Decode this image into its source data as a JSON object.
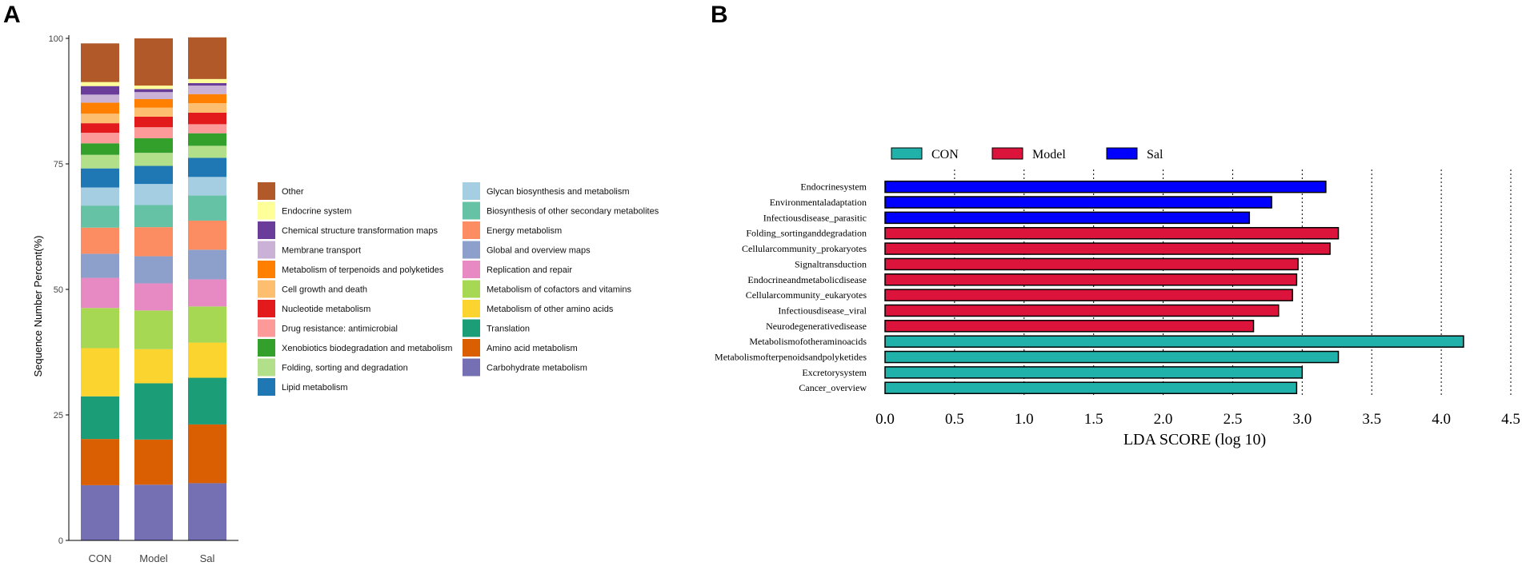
{
  "chart_data": [
    {
      "panel": "A",
      "type": "bar",
      "stacked": true,
      "ylabel": "Sequence Number Percent(%)",
      "xlabel": "",
      "ylim": [
        0,
        100
      ],
      "yticks": [
        0,
        25,
        50,
        75,
        100
      ],
      "categories": [
        "CON",
        "Model",
        "Sal"
      ],
      "series": [
        {
          "name": "Carbohydrate metabolism",
          "color": "#7570B3",
          "values": [
            11.0,
            11.1,
            11.4
          ]
        },
        {
          "name": "Amino acid metabolism",
          "color": "#D95F02",
          "values": [
            9.2,
            9.0,
            11.7
          ]
        },
        {
          "name": "Translation",
          "color": "#1B9E77",
          "values": [
            8.5,
            11.2,
            9.3
          ]
        },
        {
          "name": "Metabolism of other amino acids",
          "color": "#FCD430",
          "values": [
            9.6,
            6.8,
            7.0
          ]
        },
        {
          "name": "Metabolism of cofactors and vitamins",
          "color": "#A6D854",
          "values": [
            8.0,
            7.7,
            7.2
          ]
        },
        {
          "name": "Replication and repair",
          "color": "#E78AC3",
          "values": [
            6.0,
            5.4,
            5.4
          ]
        },
        {
          "name": "Global and overview maps",
          "color": "#8DA0CB",
          "values": [
            4.8,
            5.4,
            5.9
          ]
        },
        {
          "name": "Energy metabolism",
          "color": "#FC8D62",
          "values": [
            5.2,
            5.8,
            5.8
          ]
        },
        {
          "name": "Biosynthesis of other secondary metabolites",
          "color": "#66C2A5",
          "values": [
            4.4,
            4.4,
            5.0
          ]
        },
        {
          "name": "Glycan biosynthesis and metabolism",
          "color": "#A6CEE3",
          "values": [
            3.6,
            4.2,
            3.7
          ]
        },
        {
          "name": "Lipid metabolism",
          "color": "#1F78B4",
          "values": [
            3.8,
            3.6,
            3.8
          ]
        },
        {
          "name": "Folding, sorting and degradation",
          "color": "#B2DF8A",
          "values": [
            2.7,
            2.6,
            2.4
          ]
        },
        {
          "name": "Xenobiotics biodegradation and metabolism",
          "color": "#33A02C",
          "values": [
            2.3,
            2.9,
            2.5
          ]
        },
        {
          "name": "Drug resistance: antimicrobial",
          "color": "#FB9A99",
          "values": [
            2.1,
            2.2,
            1.8
          ]
        },
        {
          "name": "Nucleotide metabolism",
          "color": "#E31A1C",
          "values": [
            1.9,
            2.1,
            2.3
          ]
        },
        {
          "name": "Cell growth and death",
          "color": "#FDBF6F",
          "values": [
            1.9,
            1.8,
            1.9
          ]
        },
        {
          "name": "Metabolism of terpenoids and polyketides",
          "color": "#FF7F00",
          "values": [
            2.2,
            1.7,
            1.8
          ]
        },
        {
          "name": "Membrane transport",
          "color": "#CAB2D6",
          "values": [
            1.6,
            1.4,
            1.7
          ]
        },
        {
          "name": "Chemical structure transformation maps",
          "color": "#6A3D9A",
          "values": [
            1.7,
            0.6,
            0.5
          ]
        },
        {
          "name": "Endocrine system",
          "color": "#FFFF99",
          "values": [
            0.8,
            0.7,
            0.8
          ]
        },
        {
          "name": "Other",
          "color": "#B15928",
          "values": [
            7.7,
            9.4,
            8.3
          ]
        }
      ],
      "legend_order": [
        "Other",
        "Endocrine system",
        "Chemical structure transformation maps",
        "Membrane transport",
        "Metabolism of terpenoids and polyketides",
        "Cell growth and death",
        "Nucleotide metabolism",
        "Drug resistance: antimicrobial",
        "Xenobiotics biodegradation and metabolism",
        "Folding, sorting and degradation",
        "Lipid metabolism",
        "Glycan biosynthesis and metabolism",
        "Biosynthesis of other secondary metabolites",
        "Energy metabolism",
        "Global and overview maps",
        "Replication and repair",
        "Metabolism of cofactors and vitamins",
        "Metabolism of other amino acids",
        "Translation",
        "Amino acid metabolism",
        "Carbohydrate metabolism"
      ],
      "legend_position": "right"
    },
    {
      "panel": "B",
      "type": "bar",
      "orientation": "horizontal",
      "xlabel": "LDA SCORE (log 10)",
      "ylabel": "",
      "xlim": [
        0,
        4.5
      ],
      "xticks": [
        0.0,
        0.5,
        1.0,
        1.5,
        2.0,
        2.5,
        3.0,
        3.5,
        4.0,
        4.5
      ],
      "grid": "vertical dotted",
      "legend_position": "top",
      "groups": [
        {
          "name": "CON",
          "color": "#20B2AA"
        },
        {
          "name": "Model",
          "color": "#DC143C"
        },
        {
          "name": "Sal",
          "color": "#0000FF"
        }
      ],
      "features": [
        {
          "name": "Endocrinesystem",
          "group": "Sal",
          "value": 3.17
        },
        {
          "name": "Environmentaladaptation",
          "group": "Sal",
          "value": 2.78
        },
        {
          "name": "Infectiousdisease_parasitic",
          "group": "Sal",
          "value": 2.62
        },
        {
          "name": "Folding_sortinganddegradation",
          "group": "Model",
          "value": 3.26
        },
        {
          "name": "Cellularcommunity_prokaryotes",
          "group": "Model",
          "value": 3.2
        },
        {
          "name": "Signaltransduction",
          "group": "Model",
          "value": 2.97
        },
        {
          "name": "Endocrineandmetabolicdisease",
          "group": "Model",
          "value": 2.96
        },
        {
          "name": "Cellularcommunity_eukaryotes",
          "group": "Model",
          "value": 2.93
        },
        {
          "name": "Infectiousdisease_viral",
          "group": "Model",
          "value": 2.83
        },
        {
          "name": "Neurodegenerativedisease",
          "group": "Model",
          "value": 2.65
        },
        {
          "name": "Metabolismofotheraminoacids",
          "group": "CON",
          "value": 4.16
        },
        {
          "name": "Metabolismofterpenoidsandpolyketides",
          "group": "CON",
          "value": 3.26
        },
        {
          "name": "Excretorysystem",
          "group": "CON",
          "value": 3.0
        },
        {
          "name": "Cancer_overview",
          "group": "CON",
          "value": 2.96
        }
      ]
    }
  ]
}
